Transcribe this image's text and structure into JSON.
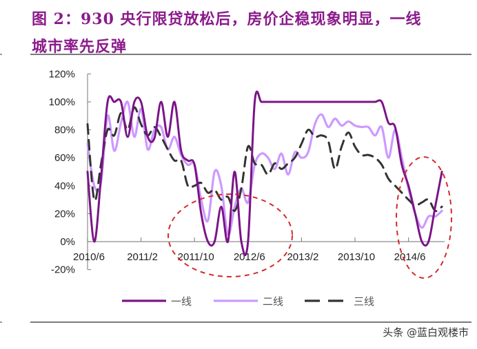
{
  "figure": {
    "title_line1": "图 2：930 央行限贷放松后，房价企稳现象明显，一线",
    "title_line2": "城市率先反弹",
    "title_color": "#8b1a8b"
  },
  "watermark": "头条 @蓝白观楼市",
  "chart_data": {
    "type": "line",
    "title": "图 2：930 央行限贷放松后，房价企稳现象明显，一线城市率先反弹",
    "xlabel": "",
    "ylabel": "",
    "ylim": [
      -0.2,
      1.2
    ],
    "yticks": [
      "120%",
      "100%",
      "80%",
      "60%",
      "40%",
      "20%",
      "0%",
      "-20%"
    ],
    "ytick_values": [
      1.2,
      1.0,
      0.8,
      0.6,
      0.4,
      0.2,
      0.0,
      -0.2
    ],
    "xticks": [
      "2010/6",
      "2011/2",
      "2011/10",
      "2012/6",
      "2013/2",
      "2013/10",
      "2014/6"
    ],
    "xtick_index": [
      0,
      8,
      16,
      24,
      32,
      40,
      48
    ],
    "grid": false,
    "legend_position": "bottom",
    "x_start": "2010/6",
    "x_end": "2014/11",
    "x_frequency": "monthly",
    "series": [
      {
        "name": "一线",
        "color": "#7b1488",
        "style": "solid",
        "values": [
          0.5,
          0.0,
          0.45,
          1.0,
          1.0,
          1.0,
          0.75,
          1.0,
          1.0,
          0.75,
          0.74,
          1.0,
          0.75,
          1.0,
          0.65,
          0.58,
          0.55,
          0.2,
          0.0,
          0.0,
          0.25,
          0.0,
          0.5,
          0.0,
          0.0,
          1.0,
          1.0,
          1.0,
          1.0,
          1.0,
          1.0,
          1.0,
          1.0,
          1.0,
          1.0,
          1.0,
          1.0,
          1.0,
          1.0,
          1.0,
          1.0,
          1.0,
          1.0,
          1.0,
          1.0,
          0.85,
          0.82,
          0.55,
          0.4,
          0.2,
          0.0,
          0.0,
          0.25,
          0.5
        ]
      },
      {
        "name": "二线",
        "color": "#cc99ff",
        "style": "solid",
        "values": [
          0.7,
          0.4,
          0.42,
          0.9,
          0.65,
          0.85,
          1.0,
          0.75,
          0.95,
          0.66,
          0.8,
          0.82,
          0.66,
          0.75,
          0.62,
          0.55,
          0.55,
          0.3,
          0.15,
          0.5,
          0.4,
          0.05,
          0.25,
          0.38,
          0.28,
          0.55,
          0.63,
          0.6,
          0.52,
          0.63,
          0.48,
          0.64,
          0.6,
          0.64,
          0.84,
          0.91,
          0.82,
          0.88,
          0.83,
          0.86,
          0.83,
          0.82,
          0.82,
          0.76,
          0.82,
          0.6,
          0.8,
          0.6,
          0.38,
          0.2,
          0.1,
          0.18,
          0.18,
          0.22
        ]
      },
      {
        "name": "三线",
        "color": "#333333",
        "style": "dashed",
        "values": [
          0.84,
          0.3,
          0.55,
          0.8,
          0.76,
          0.92,
          0.8,
          0.96,
          0.84,
          0.76,
          0.82,
          0.75,
          0.66,
          0.58,
          0.58,
          0.4,
          0.4,
          0.42,
          0.35,
          0.37,
          0.3,
          0.32,
          0.22,
          0.38,
          0.68,
          0.56,
          0.55,
          0.48,
          0.56,
          0.52,
          0.56,
          0.6,
          0.7,
          0.8,
          0.75,
          0.76,
          0.72,
          0.52,
          0.68,
          0.78,
          0.68,
          0.62,
          0.62,
          0.6,
          0.55,
          0.45,
          0.4,
          0.35,
          0.3,
          0.26,
          0.28,
          0.3,
          0.22,
          0.25
        ]
      }
    ],
    "annotations": [
      {
        "type": "dashed-ellipse",
        "color": "#cc2222",
        "region": "2011/8 – 2012/11",
        "label": ""
      },
      {
        "type": "dashed-ellipse",
        "color": "#cc2222",
        "region": "2014/3 – 2014/11",
        "label": ""
      }
    ]
  }
}
